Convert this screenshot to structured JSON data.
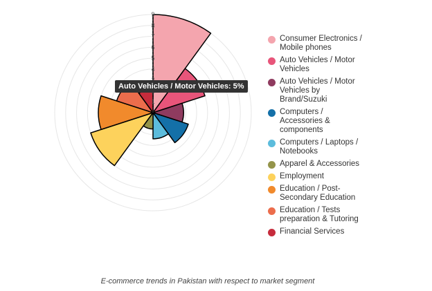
{
  "chart_data": {
    "type": "polar-area",
    "caption": "E-commerce trends in Pakistan with respect to market segment",
    "radial_ticks": [
      "1",
      "2",
      "3",
      "4",
      "5",
      "6",
      "7",
      "8",
      "9"
    ],
    "rmax": 9,
    "tooltip": "Auto Vehicles / Motor Vehicles: 5%",
    "series": [
      {
        "name": "Consumer Electronics / Mobile phones",
        "value": 9,
        "color": "#f4a5ae"
      },
      {
        "name": "Auto Vehicles / Motor Vehicles",
        "value": 5,
        "color": "#e8557a"
      },
      {
        "name": "Auto Vehicles / Motor Vehicles by Brand/Suzuki",
        "value": 2.8,
        "color": "#8f3b5f"
      },
      {
        "name": "Computers / Accessories & components",
        "value": 3.4,
        "color": "#1470a8"
      },
      {
        "name": "Computers / Laptops / Notebooks",
        "value": 2.4,
        "color": "#5cbcdc"
      },
      {
        "name": "Apparel & Accessories",
        "value": 1.5,
        "color": "#94944a"
      },
      {
        "name": "Employment",
        "value": 6,
        "color": "#fdd25c"
      },
      {
        "name": "Education / Post-Secondary Education",
        "value": 5,
        "color": "#f18a2c"
      },
      {
        "name": "Education / Tests preparation & Tutoring",
        "value": 3.5,
        "color": "#ec6d4c"
      },
      {
        "name": "Financial Services",
        "value": 2.2,
        "color": "#c62c3c"
      }
    ]
  }
}
